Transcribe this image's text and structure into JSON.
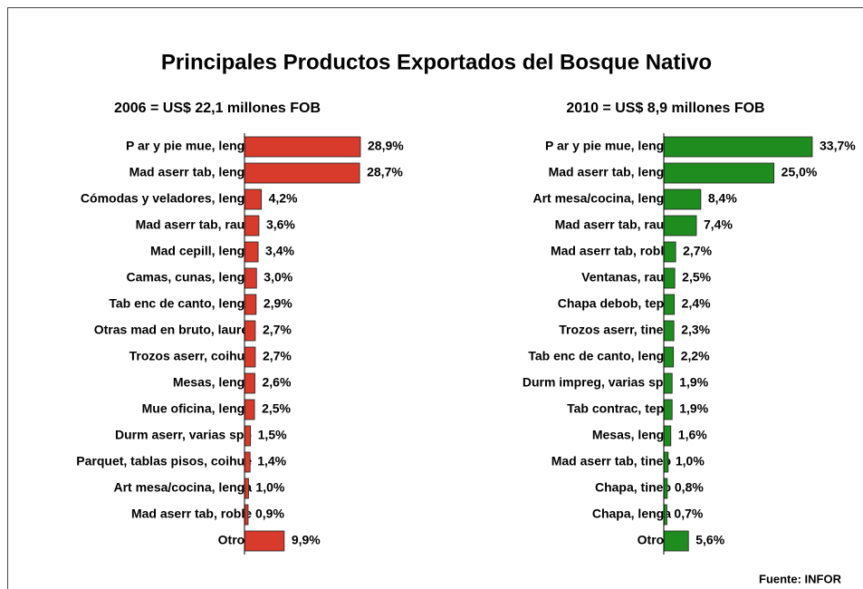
{
  "title": "Principales Productos Exportados del  Bosque Nativo",
  "source": "Fuente: INFOR",
  "chart_data": [
    {
      "type": "bar",
      "orientation": "horizontal",
      "subtitle": "2006 = US$ 22,1 millones FOB",
      "color": "#d83a2c",
      "categories": [
        "P ar y pie mue, lenga",
        "Mad aserr tab, lenga",
        "Cómodas y veladores, lenga",
        "Mad aserr tab, raulí",
        "Mad cepill, lenga",
        "Camas, cunas, lenga",
        "Tab enc de canto, lenga",
        "Otras mad en bruto, laurel",
        "Trozos aserr, coihue",
        "Mesas, lenga",
        "Mue oficina, lenga",
        "Durm aserr, varias spp",
        "Parquet, tablas pisos, coihue",
        "Art mesa/cocina, lenga",
        "Mad aserr tab, roble",
        "Otros"
      ],
      "values": [
        28.9,
        28.7,
        4.2,
        3.6,
        3.4,
        3.0,
        2.9,
        2.7,
        2.7,
        2.6,
        2.5,
        1.5,
        1.4,
        1.0,
        0.9,
        9.9
      ],
      "value_labels": [
        "28,9%",
        "28,7%",
        "4,2%",
        "3,6%",
        "3,4%",
        "3,0%",
        "2,9%",
        "2,7%",
        "2,7%",
        "2,6%",
        "2,5%",
        "1,5%",
        "1,4%",
        "1,0%",
        "0,9%",
        "9,9%"
      ]
    },
    {
      "type": "bar",
      "orientation": "horizontal",
      "subtitle": "2010 = US$ 8,9 millones FOB",
      "color": "#1e8c1e",
      "categories": [
        "P ar y pie mue, lenga",
        "Mad aserr tab, lenga",
        "Art mesa/cocina, lenga",
        "Mad aserr tab, raulí",
        "Mad aserr tab, roble",
        "Ventanas, raulí",
        "Chapa debob, tepa",
        "Trozos aserr, tineo",
        "Tab enc de canto, lenga",
        "Durm impreg, varias spp",
        "Tab contrac, tepa",
        "Mesas, lenga",
        "Mad aserr tab, tineo",
        "Chapa, tineo",
        "Chapa, lenga",
        "Otros"
      ],
      "values": [
        33.7,
        25.0,
        8.4,
        7.4,
        2.7,
        2.5,
        2.4,
        2.3,
        2.2,
        1.9,
        1.9,
        1.6,
        1.0,
        0.8,
        0.7,
        5.6
      ],
      "value_labels": [
        "33,7%",
        "25,0%",
        "8,4%",
        "7,4%",
        "2,7%",
        "2,5%",
        "2,4%",
        "2,3%",
        "2,2%",
        "1,9%",
        "1,9%",
        "1,6%",
        "1,0%",
        "0,8%",
        "0,7%",
        "5,6%"
      ]
    }
  ]
}
